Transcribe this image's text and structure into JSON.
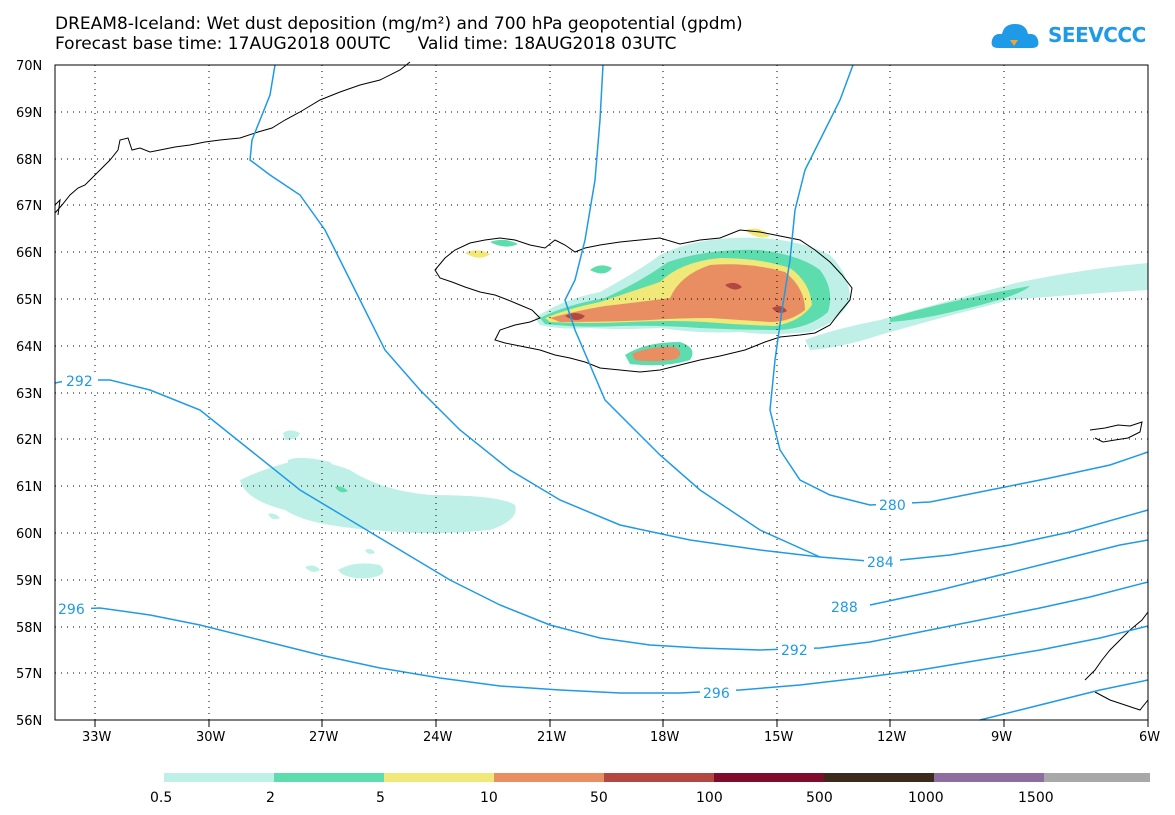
{
  "title_line1": "DREAM8-Iceland: Wet dust deposition (mg/m²) and 700 hPa geopotential (gpdm)",
  "title_line2": "Forecast base time: 17AUG2018 00UTC     Valid time: 18AUG2018 03UTC",
  "logo_text": "SEEVCCC",
  "logo_icon": "cloud-icon",
  "map": {
    "lat_range": [
      56,
      70
    ],
    "lon_range": [
      -34.5,
      -6
    ],
    "lat_labels": [
      "70N",
      "69N",
      "68N",
      "67N",
      "66N",
      "65N",
      "64N",
      "63N",
      "62N",
      "61N",
      "60N",
      "59N",
      "58N",
      "57N",
      "56N"
    ],
    "lon_labels": [
      "33W",
      "30W",
      "27W",
      "24W",
      "21W",
      "18W",
      "15W",
      "12W",
      "9W",
      "6W"
    ],
    "grid": "dotted",
    "contour_color": "#1f9ae6",
    "contour_labels": [
      "292",
      "296",
      "280",
      "284",
      "288",
      "292",
      "296"
    ]
  },
  "legend": {
    "labels": [
      "0.5",
      "2",
      "5",
      "10",
      "50",
      "100",
      "500",
      "1000",
      "1500"
    ],
    "colors": [
      "#bff0e8",
      "#5ddcae",
      "#f0e878",
      "#e88e62",
      "#b2483f",
      "#7f0c2a",
      "#3c2a1c",
      "#8e6e9e",
      "#a8a8a8"
    ]
  }
}
